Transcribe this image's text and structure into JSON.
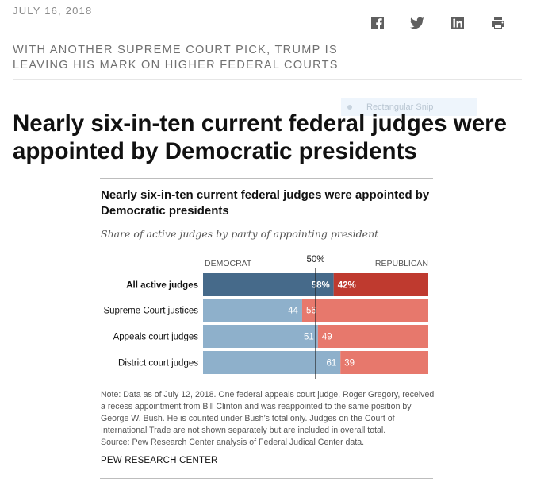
{
  "page": {
    "date": "JULY 16, 2018",
    "kicker": "WITH ANOTHER SUPREME COURT PICK, TRUMP IS LEAVING HIS MARK ON HIGHER FEDERAL COURTS",
    "headline": "Nearly six-in-ten current federal judges were appointed by Democratic presidents",
    "overlay_label": "Rectangular Snip"
  },
  "share": {
    "icons": [
      "facebook-icon",
      "twitter-icon",
      "linkedin-icon",
      "print-icon"
    ]
  },
  "colors": {
    "dem_dark": "#466a8a",
    "dem_light": "#8eb0cb",
    "rep_dark": "#bf3a2f",
    "rep_light": "#e7786c",
    "midline": "#222222"
  },
  "chart_data": {
    "type": "bar",
    "orientation": "horizontal-stacked-100",
    "title": "Nearly six-in-ten current federal judges were appointed by Democratic presidents",
    "subtitle": "Share of active judges by party of appointing president",
    "legend": [
      "DEMOCRAT",
      "REPUBLICAN"
    ],
    "reference_line": {
      "value": 50,
      "label": "50%"
    },
    "categories": [
      "All active judges",
      "Supreme Court justices",
      "Appeals court judges",
      "District court judges"
    ],
    "series": [
      {
        "name": "DEMOCRAT",
        "values": [
          58,
          44,
          51,
          61
        ]
      },
      {
        "name": "REPUBLICAN",
        "values": [
          42,
          56,
          49,
          39
        ]
      }
    ],
    "labels": {
      "DEMOCRAT": [
        "58%",
        "44",
        "51",
        "61"
      ],
      "REPUBLICAN": [
        "42%",
        "56",
        "49",
        "39"
      ]
    },
    "xlim": [
      0,
      100
    ],
    "note": "Note: Data as of July 12, 2018. One federal appeals court judge, Roger Gregory, received a recess appointment from Bill Clinton and was reappointed to the same position by George W. Bush. He is counted under Bush’s total only. Judges on the Court of International Trade are not shown separately but are included in overall total.",
    "source": "Source: Pew Research Center analysis of Federal Judical Center data.",
    "brand": "PEW RESEARCH CENTER"
  }
}
